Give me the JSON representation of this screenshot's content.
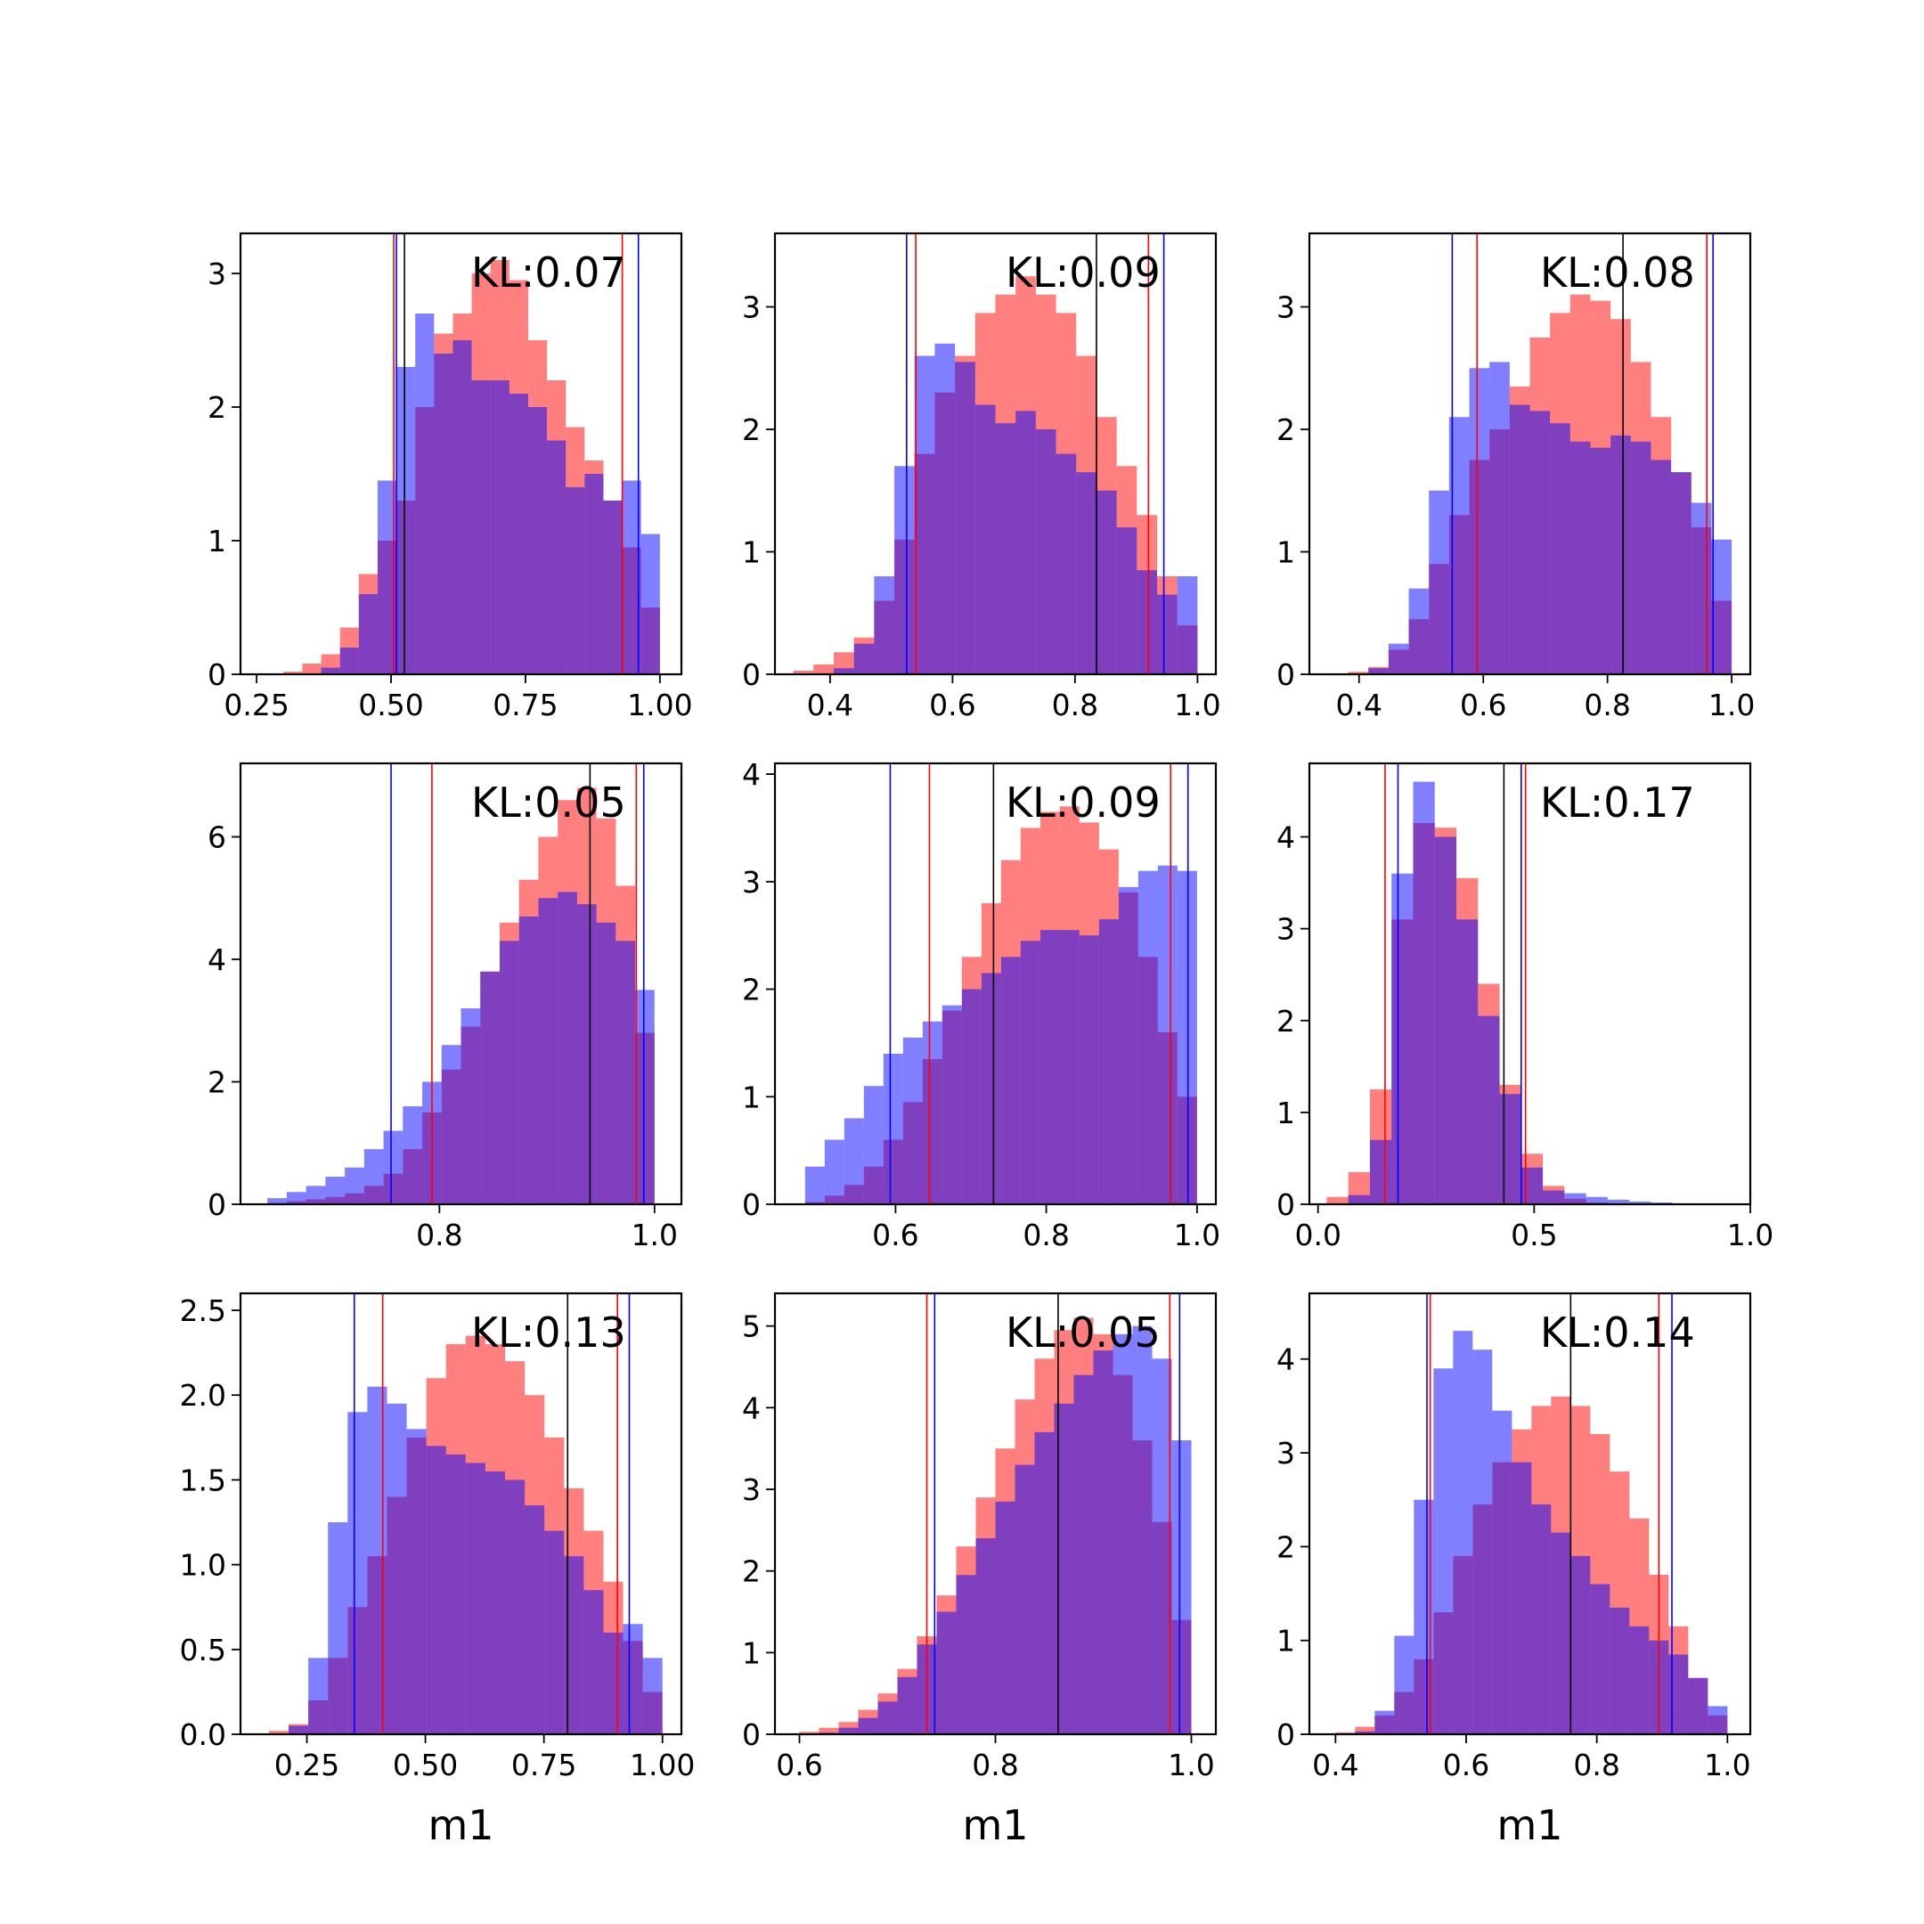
{
  "figure": {
    "colors": {
      "series_a": "#ff0000",
      "series_b": "#0000ff",
      "overlap": "#7f3fbf",
      "reference_line": "#000000"
    }
  },
  "chart_data": [
    {
      "type": "histogram",
      "annotation": "KL:0.07",
      "xlabel": "",
      "xlim": [
        0.22,
        1.04
      ],
      "ylim": [
        0,
        3.3
      ],
      "xticks": [
        0.25,
        0.5,
        0.75,
        1.0
      ],
      "xtick_labels": [
        "0.25",
        "0.50",
        "0.75",
        "1.00"
      ],
      "yticks": [
        0,
        1,
        2,
        3
      ],
      "ytick_labels": [
        "0",
        "1",
        "2",
        "3"
      ],
      "bin_edges": [
        0.3,
        0.335,
        0.37,
        0.405,
        0.44,
        0.475,
        0.51,
        0.545,
        0.58,
        0.615,
        0.65,
        0.685,
        0.72,
        0.755,
        0.79,
        0.825,
        0.86,
        0.895,
        0.93,
        0.965,
        1.0
      ],
      "series": [
        {
          "color": "red",
          "values": [
            0.02,
            0.08,
            0.15,
            0.35,
            0.75,
            1.0,
            1.3,
            2.0,
            2.55,
            2.7,
            3.0,
            3.1,
            2.95,
            2.5,
            2.2,
            1.85,
            1.6,
            1.3,
            0.95,
            0.5
          ]
        },
        {
          "color": "blue",
          "values": [
            0.0,
            0.0,
            0.05,
            0.2,
            0.6,
            1.45,
            2.3,
            2.7,
            2.4,
            2.5,
            2.2,
            2.2,
            2.1,
            2.0,
            1.75,
            1.4,
            1.5,
            1.3,
            1.45,
            1.05
          ]
        }
      ],
      "vlines": [
        {
          "color": "red",
          "x": 0.505
        },
        {
          "color": "red",
          "x": 0.93
        },
        {
          "color": "blue",
          "x": 0.51
        },
        {
          "color": "blue",
          "x": 0.96
        },
        {
          "color": "black",
          "x": 0.525
        }
      ]
    },
    {
      "type": "histogram",
      "annotation": "KL:0.09",
      "xlabel": "",
      "xlim": [
        0.31,
        1.03
      ],
      "ylim": [
        0,
        3.6
      ],
      "xticks": [
        0.4,
        0.6,
        0.8,
        1.0
      ],
      "xtick_labels": [
        "0.4",
        "0.6",
        "0.8",
        "1.0"
      ],
      "yticks": [
        0,
        1,
        2,
        3
      ],
      "ytick_labels": [
        "0",
        "1",
        "2",
        "3"
      ],
      "bin_edges": [
        0.34,
        0.373,
        0.406,
        0.439,
        0.472,
        0.505,
        0.538,
        0.571,
        0.604,
        0.637,
        0.67,
        0.703,
        0.736,
        0.769,
        0.802,
        0.835,
        0.868,
        0.901,
        0.934,
        0.967,
        1.0
      ],
      "series": [
        {
          "color": "red",
          "values": [
            0.03,
            0.08,
            0.18,
            0.3,
            0.6,
            1.1,
            1.8,
            2.3,
            2.6,
            2.95,
            3.1,
            3.25,
            3.1,
            2.95,
            2.6,
            2.1,
            1.7,
            1.3,
            0.8,
            0.4
          ]
        },
        {
          "color": "blue",
          "values": [
            0.0,
            0.0,
            0.05,
            0.25,
            0.8,
            1.7,
            2.6,
            2.7,
            2.55,
            2.2,
            2.05,
            2.15,
            2.0,
            1.8,
            1.65,
            1.5,
            1.2,
            0.85,
            0.65,
            0.8
          ]
        }
      ],
      "vlines": [
        {
          "color": "red",
          "x": 0.54
        },
        {
          "color": "red",
          "x": 0.92
        },
        {
          "color": "blue",
          "x": 0.525
        },
        {
          "color": "blue",
          "x": 0.945
        },
        {
          "color": "black",
          "x": 0.835
        }
      ]
    },
    {
      "type": "histogram",
      "annotation": "KL:0.08",
      "xlabel": "",
      "xlim": [
        0.32,
        1.03
      ],
      "ylim": [
        0,
        3.6
      ],
      "xticks": [
        0.4,
        0.6,
        0.8,
        1.0
      ],
      "xtick_labels": [
        "0.4",
        "0.6",
        "0.8",
        "1.0"
      ],
      "yticks": [
        0,
        1,
        2,
        3
      ],
      "ytick_labels": [
        "0",
        "1",
        "2",
        "3"
      ],
      "bin_edges": [
        0.35,
        0.3825,
        0.415,
        0.4475,
        0.48,
        0.5125,
        0.545,
        0.5775,
        0.61,
        0.6425,
        0.675,
        0.7075,
        0.74,
        0.7725,
        0.805,
        0.8375,
        0.87,
        0.9025,
        0.935,
        0.9675,
        1.0
      ],
      "series": [
        {
          "color": "red",
          "values": [
            0.0,
            0.02,
            0.06,
            0.2,
            0.45,
            0.9,
            1.3,
            1.75,
            2.0,
            2.35,
            2.75,
            2.95,
            3.1,
            3.05,
            2.9,
            2.55,
            2.1,
            1.65,
            1.2,
            0.6
          ]
        },
        {
          "color": "blue",
          "values": [
            0.0,
            0.0,
            0.05,
            0.25,
            0.7,
            1.5,
            2.1,
            2.5,
            2.55,
            2.2,
            2.15,
            2.05,
            1.9,
            1.85,
            1.95,
            1.9,
            1.75,
            1.65,
            1.4,
            1.1
          ]
        }
      ],
      "vlines": [
        {
          "color": "red",
          "x": 0.59
        },
        {
          "color": "red",
          "x": 0.96
        },
        {
          "color": "blue",
          "x": 0.55
        },
        {
          "color": "blue",
          "x": 0.97
        },
        {
          "color": "black",
          "x": 0.825
        }
      ]
    },
    {
      "type": "histogram",
      "annotation": "KL:0.05",
      "xlabel": "",
      "xlim": [
        0.615,
        1.025
      ],
      "ylim": [
        0,
        7.2
      ],
      "xticks": [
        0.8,
        1.0
      ],
      "xtick_labels": [
        "0.8",
        "1.0"
      ],
      "yticks": [
        0,
        2,
        4,
        6
      ],
      "ytick_labels": [
        "0",
        "2",
        "4",
        "6"
      ],
      "bin_edges": [
        0.64,
        0.658,
        0.676,
        0.694,
        0.712,
        0.73,
        0.748,
        0.766,
        0.784,
        0.802,
        0.82,
        0.838,
        0.856,
        0.874,
        0.892,
        0.91,
        0.928,
        0.946,
        0.964,
        0.982,
        1.0
      ],
      "series": [
        {
          "color": "red",
          "values": [
            0.02,
            0.05,
            0.08,
            0.12,
            0.18,
            0.3,
            0.5,
            0.9,
            1.5,
            2.2,
            2.9,
            3.8,
            4.6,
            5.3,
            6.0,
            6.6,
            6.8,
            6.3,
            5.2,
            2.8
          ]
        },
        {
          "color": "blue",
          "values": [
            0.1,
            0.2,
            0.3,
            0.45,
            0.6,
            0.9,
            1.2,
            1.6,
            2.0,
            2.6,
            3.2,
            3.8,
            4.3,
            4.7,
            5.0,
            5.1,
            4.9,
            4.6,
            4.3,
            3.5
          ]
        }
      ],
      "vlines": [
        {
          "color": "red",
          "x": 0.793
        },
        {
          "color": "red",
          "x": 0.983
        },
        {
          "color": "blue",
          "x": 0.755
        },
        {
          "color": "blue",
          "x": 0.99
        },
        {
          "color": "black",
          "x": 0.94
        }
      ]
    },
    {
      "type": "histogram",
      "annotation": "KL:0.09",
      "xlabel": "",
      "xlim": [
        0.44,
        1.025
      ],
      "ylim": [
        0,
        4.1
      ],
      "xticks": [
        0.6,
        0.8,
        1.0
      ],
      "xtick_labels": [
        "0.6",
        "0.8",
        "1.0"
      ],
      "yticks": [
        0,
        1,
        2,
        3,
        4
      ],
      "ytick_labels": [
        "0",
        "1",
        "2",
        "3",
        "4"
      ],
      "bin_edges": [
        0.48,
        0.506,
        0.532,
        0.558,
        0.584,
        0.61,
        0.636,
        0.662,
        0.688,
        0.714,
        0.74,
        0.766,
        0.792,
        0.818,
        0.844,
        0.87,
        0.896,
        0.922,
        0.948,
        0.974,
        1.0
      ],
      "series": [
        {
          "color": "red",
          "values": [
            0.02,
            0.08,
            0.18,
            0.35,
            0.6,
            0.95,
            1.35,
            1.8,
            2.3,
            2.8,
            3.2,
            3.5,
            3.65,
            3.7,
            3.55,
            3.3,
            2.9,
            2.3,
            1.6,
            1.0
          ]
        },
        {
          "color": "blue",
          "values": [
            0.35,
            0.6,
            0.8,
            1.1,
            1.4,
            1.55,
            1.7,
            1.85,
            2.0,
            2.15,
            2.3,
            2.45,
            2.55,
            2.55,
            2.5,
            2.65,
            2.95,
            3.1,
            3.15,
            3.1
          ]
        }
      ],
      "vlines": [
        {
          "color": "red",
          "x": 0.645
        },
        {
          "color": "red",
          "x": 0.965
        },
        {
          "color": "blue",
          "x": 0.593
        },
        {
          "color": "blue",
          "x": 0.988
        },
        {
          "color": "black",
          "x": 0.73
        }
      ]
    },
    {
      "type": "histogram",
      "annotation": "KL:0.17",
      "xlabel": "",
      "xlim": [
        -0.02,
        1.0
      ],
      "ylim": [
        0,
        4.8
      ],
      "xticks": [
        0.0,
        0.5,
        1.0
      ],
      "xtick_labels": [
        "0.0",
        "0.5",
        "1.0"
      ],
      "yticks": [
        0,
        1,
        2,
        3,
        4
      ],
      "ytick_labels": [
        "0",
        "1",
        "2",
        "3",
        "4"
      ],
      "bin_edges": [
        0.02,
        0.07,
        0.12,
        0.17,
        0.22,
        0.27,
        0.32,
        0.37,
        0.42,
        0.47,
        0.52,
        0.57,
        0.62,
        0.67,
        0.72,
        0.77,
        0.82,
        0.87,
        0.92,
        0.97,
        1.0
      ],
      "series": [
        {
          "color": "red",
          "values": [
            0.08,
            0.35,
            1.25,
            3.1,
            4.15,
            4.1,
            3.55,
            2.4,
            1.3,
            0.55,
            0.2,
            0.06,
            0.02,
            0.01,
            0.0,
            0.0,
            0.0,
            0.0,
            0.0,
            0.0
          ]
        },
        {
          "color": "blue",
          "values": [
            0.0,
            0.1,
            0.7,
            3.6,
            4.6,
            4.0,
            3.1,
            2.05,
            1.2,
            0.4,
            0.15,
            0.12,
            0.08,
            0.05,
            0.03,
            0.02,
            0.01,
            0.0,
            0.0,
            0.0
          ]
        }
      ],
      "vlines": [
        {
          "color": "red",
          "x": 0.155
        },
        {
          "color": "red",
          "x": 0.48
        },
        {
          "color": "blue",
          "x": 0.185
        },
        {
          "color": "blue",
          "x": 0.47
        },
        {
          "color": "black",
          "x": 0.43
        }
      ]
    },
    {
      "type": "histogram",
      "annotation": "KL:0.13",
      "xlabel": "m1",
      "xlim": [
        0.11,
        1.04
      ],
      "ylim": [
        0,
        2.6
      ],
      "xticks": [
        0.25,
        0.5,
        0.75,
        1.0
      ],
      "xtick_labels": [
        "0.25",
        "0.50",
        "0.75",
        "1.00"
      ],
      "yticks": [
        0.0,
        0.5,
        1.0,
        1.5,
        2.0,
        2.5
      ],
      "ytick_labels": [
        "0.0",
        "0.5",
        "1.0",
        "1.5",
        "2.0",
        "2.5"
      ],
      "bin_edges": [
        0.17,
        0.2115,
        0.253,
        0.2945,
        0.336,
        0.3775,
        0.419,
        0.4605,
        0.502,
        0.5435,
        0.585,
        0.6265,
        0.668,
        0.7095,
        0.751,
        0.7925,
        0.834,
        0.8755,
        0.917,
        0.9585,
        1.0
      ],
      "series": [
        {
          "color": "red",
          "values": [
            0.02,
            0.06,
            0.2,
            0.45,
            0.75,
            1.05,
            1.4,
            1.75,
            2.1,
            2.3,
            2.35,
            2.3,
            2.2,
            2.0,
            1.75,
            1.45,
            1.2,
            0.9,
            0.55,
            0.25
          ]
        },
        {
          "color": "blue",
          "values": [
            0.0,
            0.05,
            0.45,
            1.25,
            1.9,
            2.05,
            1.95,
            1.8,
            1.7,
            1.65,
            1.6,
            1.55,
            1.5,
            1.35,
            1.2,
            1.05,
            0.85,
            0.6,
            0.65,
            0.45
          ]
        }
      ],
      "vlines": [
        {
          "color": "red",
          "x": 0.41
        },
        {
          "color": "red",
          "x": 0.905
        },
        {
          "color": "blue",
          "x": 0.35
        },
        {
          "color": "blue",
          "x": 0.93
        },
        {
          "color": "black",
          "x": 0.8
        }
      ]
    },
    {
      "type": "histogram",
      "annotation": "KL:0.05",
      "xlabel": "m1",
      "xlim": [
        0.575,
        1.025
      ],
      "ylim": [
        0,
        5.4
      ],
      "xticks": [
        0.6,
        0.8,
        1.0
      ],
      "xtick_labels": [
        "0.6",
        "0.8",
        "1.0"
      ],
      "yticks": [
        0,
        1,
        2,
        3,
        4,
        5
      ],
      "ytick_labels": [
        "0",
        "1",
        "2",
        "3",
        "4",
        "5"
      ],
      "bin_edges": [
        0.6,
        0.62,
        0.64,
        0.66,
        0.68,
        0.7,
        0.72,
        0.74,
        0.76,
        0.78,
        0.8,
        0.82,
        0.84,
        0.86,
        0.88,
        0.9,
        0.92,
        0.94,
        0.96,
        0.98,
        1.0
      ],
      "series": [
        {
          "color": "red",
          "values": [
            0.03,
            0.08,
            0.15,
            0.3,
            0.5,
            0.8,
            1.2,
            1.7,
            2.3,
            2.9,
            3.5,
            4.1,
            4.6,
            4.95,
            5.1,
            4.9,
            4.4,
            3.6,
            2.6,
            1.4
          ]
        },
        {
          "color": "blue",
          "values": [
            0.0,
            0.02,
            0.08,
            0.2,
            0.4,
            0.7,
            1.1,
            1.5,
            1.95,
            2.4,
            2.85,
            3.3,
            3.7,
            4.05,
            4.4,
            4.7,
            4.9,
            5.0,
            4.6,
            3.6
          ]
        }
      ],
      "vlines": [
        {
          "color": "red",
          "x": 0.73
        },
        {
          "color": "red",
          "x": 0.978
        },
        {
          "color": "blue",
          "x": 0.738
        },
        {
          "color": "blue",
          "x": 0.988
        },
        {
          "color": "black",
          "x": 0.864
        }
      ]
    },
    {
      "type": "histogram",
      "annotation": "KL:0.14",
      "xlabel": "m1",
      "xlim": [
        0.36,
        1.035
      ],
      "ylim": [
        0,
        4.7
      ],
      "xticks": [
        0.4,
        0.6,
        0.8,
        1.0
      ],
      "xtick_labels": [
        "0.4",
        "0.6",
        "0.8",
        "1.0"
      ],
      "yticks": [
        0,
        1,
        2,
        3,
        4
      ],
      "ytick_labels": [
        "0",
        "1",
        "2",
        "3",
        "4"
      ],
      "bin_edges": [
        0.4,
        0.43,
        0.46,
        0.49,
        0.52,
        0.55,
        0.58,
        0.61,
        0.64,
        0.67,
        0.7,
        0.73,
        0.76,
        0.79,
        0.82,
        0.85,
        0.88,
        0.91,
        0.94,
        0.97,
        1.0
      ],
      "series": [
        {
          "color": "red",
          "values": [
            0.02,
            0.08,
            0.2,
            0.45,
            0.8,
            1.3,
            1.9,
            2.45,
            2.9,
            3.25,
            3.5,
            3.6,
            3.5,
            3.2,
            2.8,
            2.3,
            1.7,
            1.15,
            0.6,
            0.2
          ]
        },
        {
          "color": "blue",
          "values": [
            0.0,
            0.03,
            0.25,
            1.05,
            2.5,
            3.9,
            4.3,
            4.1,
            3.45,
            2.9,
            2.45,
            2.15,
            1.9,
            1.6,
            1.35,
            1.15,
            1.0,
            0.85,
            0.6,
            0.3
          ]
        }
      ],
      "vlines": [
        {
          "color": "red",
          "x": 0.545
        },
        {
          "color": "red",
          "x": 0.895
        },
        {
          "color": "blue",
          "x": 0.54
        },
        {
          "color": "blue",
          "x": 0.915
        },
        {
          "color": "black",
          "x": 0.76
        }
      ]
    }
  ]
}
